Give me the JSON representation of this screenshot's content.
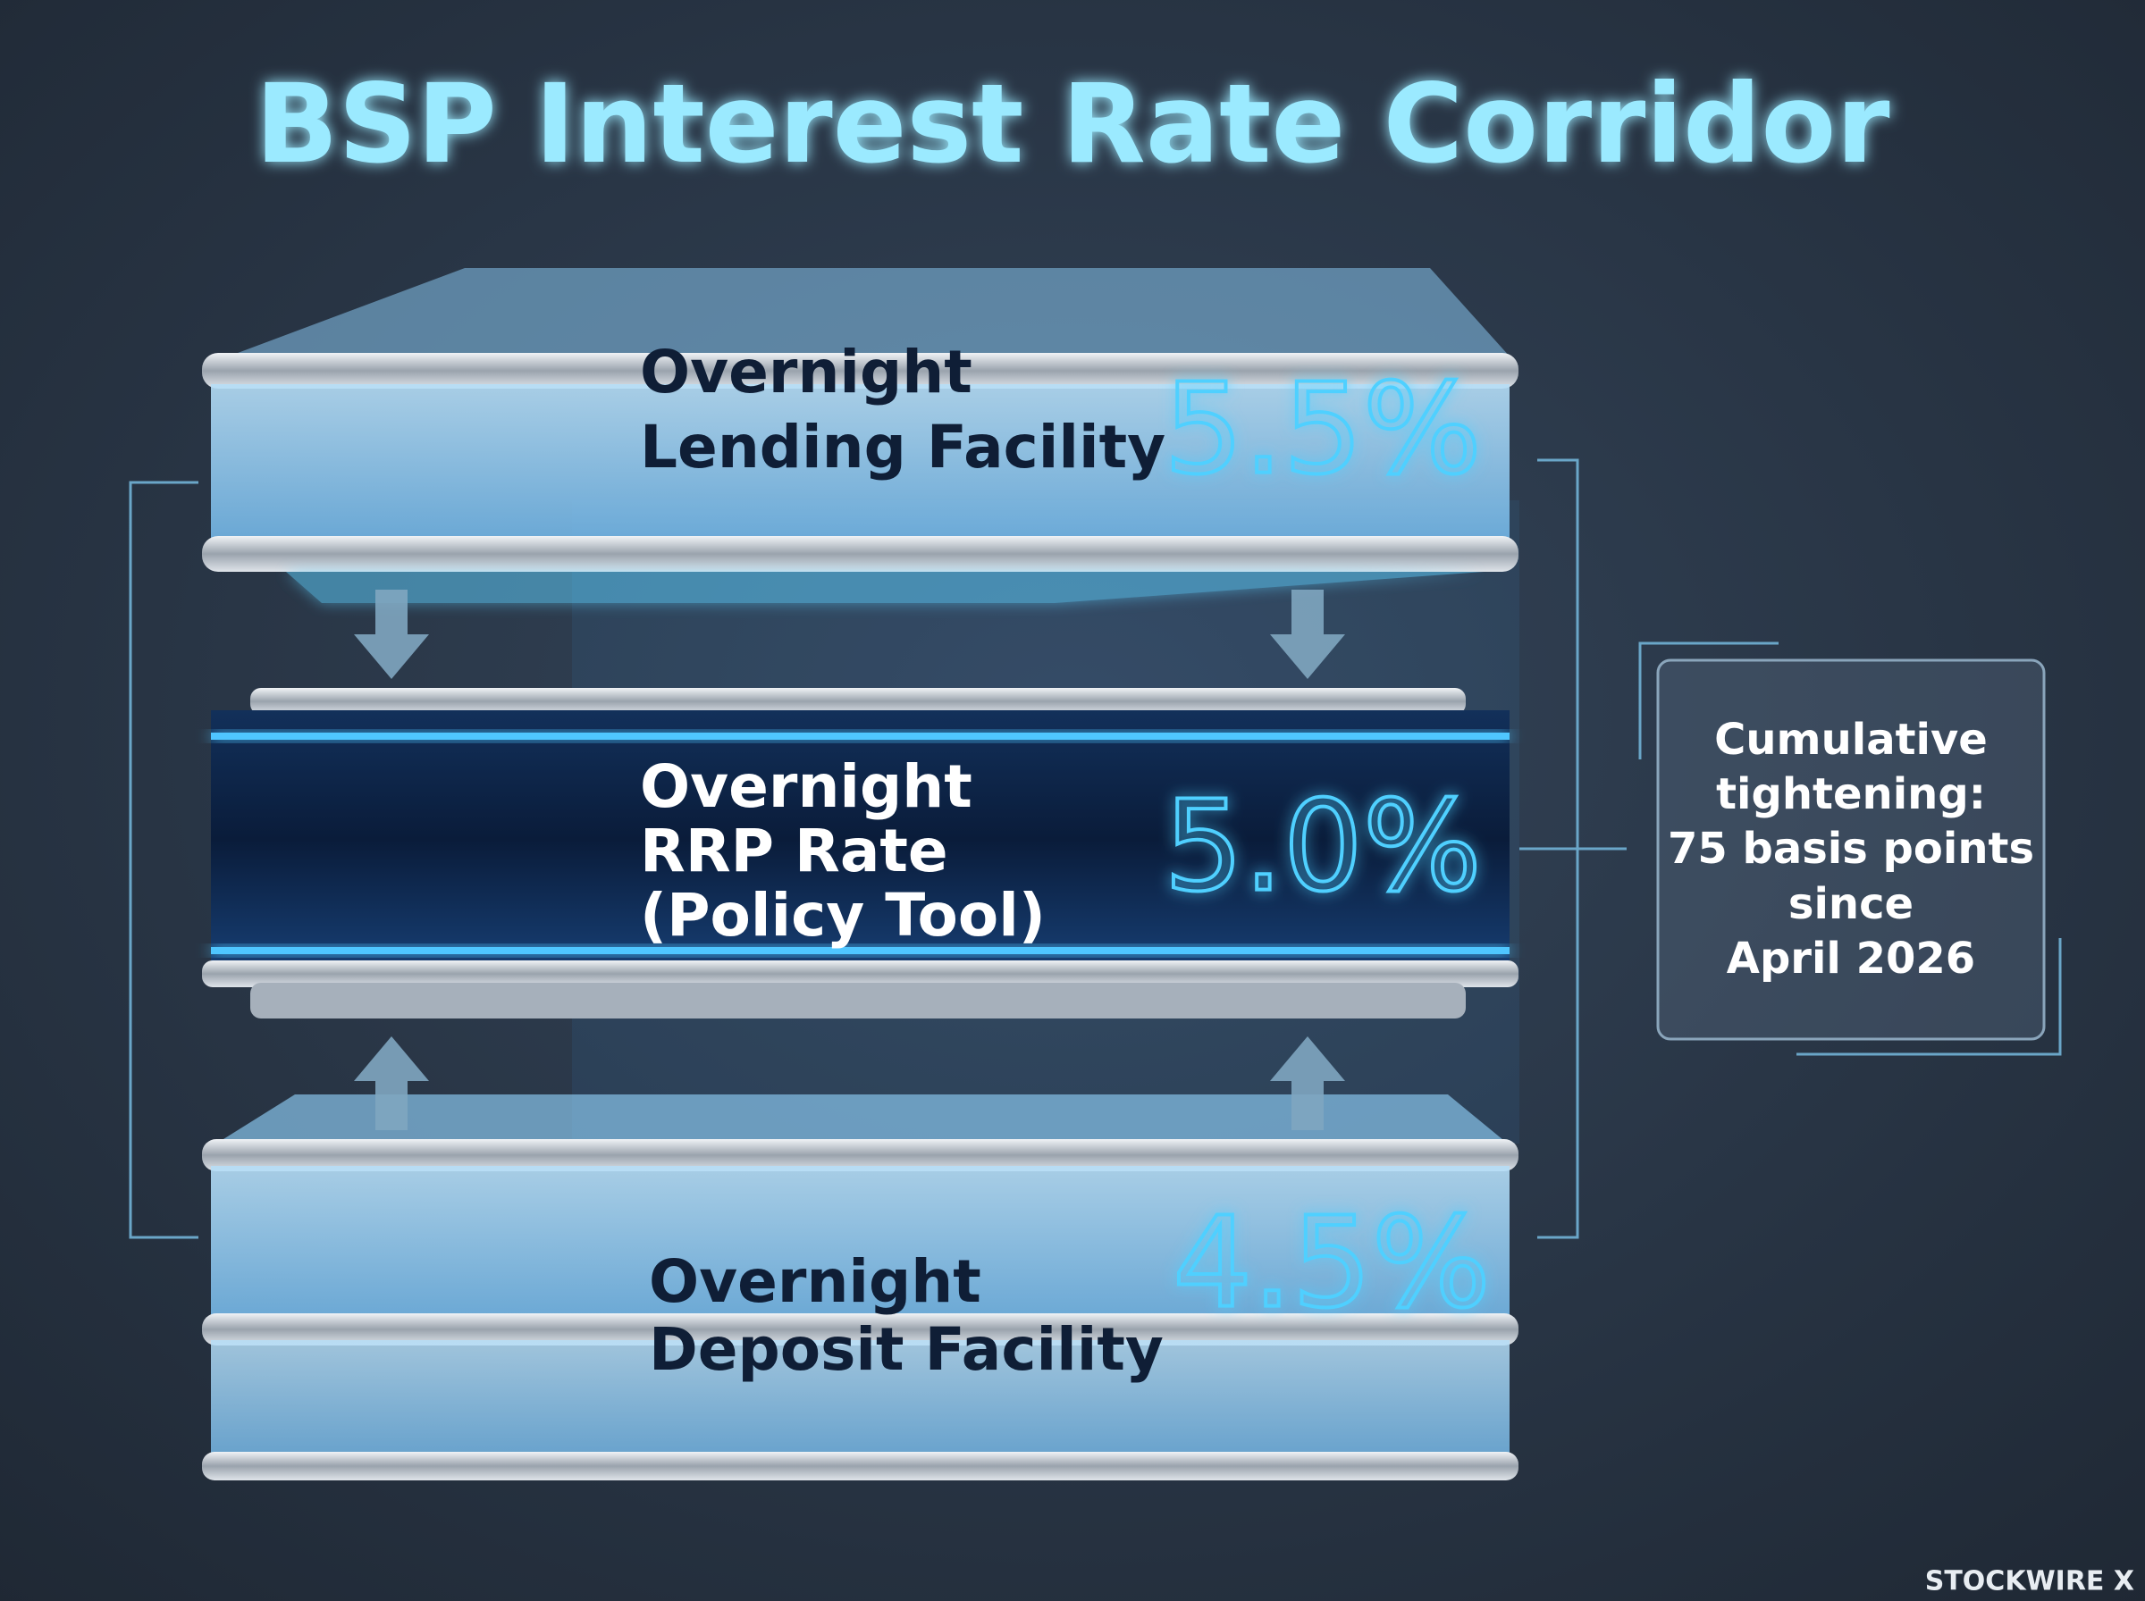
{
  "title": "BSP Interest Rate Corridor",
  "tiers": [
    {
      "label_lines": [
        "Overnight",
        "Lending Facility"
      ],
      "rate": "5.5%"
    },
    {
      "label_lines": [
        "Overnight",
        "RRP Rate",
        "(Policy Tool)"
      ],
      "rate": "5.0%"
    },
    {
      "label_lines": [
        "Overnight",
        "Deposit Facility"
      ],
      "rate": "4.5%"
    }
  ],
  "note": {
    "lines": [
      "Cumulative",
      "tightening:",
      "75 basis points",
      "since",
      "April 2026"
    ]
  },
  "brand": "STOCKWIRE X"
}
